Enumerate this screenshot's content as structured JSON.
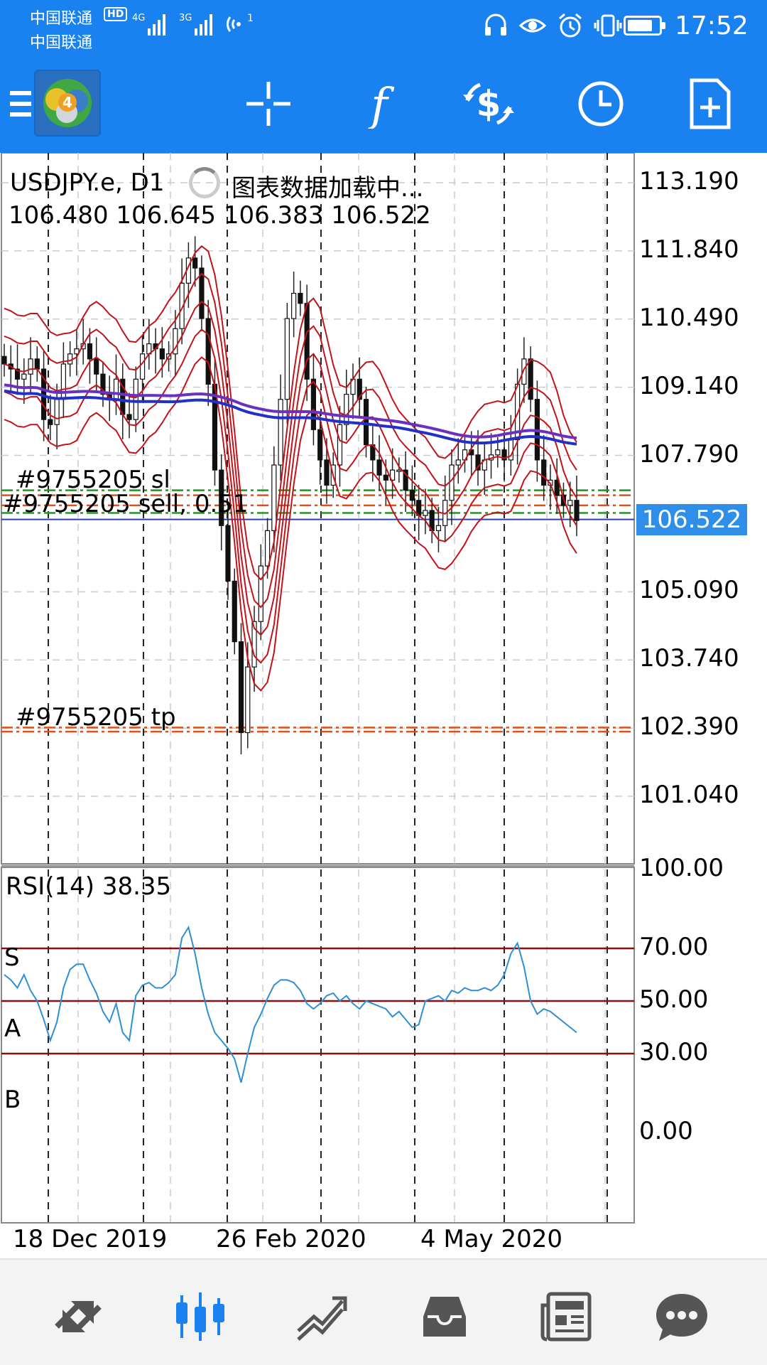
{
  "status_bar": {
    "carrier1": "中国联通",
    "carrier2": "中国联通",
    "hd": "HD",
    "net1": "4G",
    "net2": "3G",
    "time": "17:52"
  },
  "toolbar": {
    "icons": [
      "menu-icon",
      "metatrader-logo",
      "crosshair-icon",
      "indicators-icon",
      "currency-cycle-icon",
      "timeframe-icon",
      "new-order-icon"
    ],
    "accent_color": "#1a82f0"
  },
  "chart": {
    "symbol_line": "USDJPY.e, D1",
    "loading_text": "图表数据加载中...",
    "ohlc": "106.480 106.645 106.383 106.522",
    "sl_label": "#9755205 sl",
    "sell_label": "#9755205 sell, 0.51",
    "tp_label": "#9755205 tp",
    "bid_price": "106.522",
    "price_ticks": [
      "113.190",
      "111.840",
      "110.490",
      "109.140",
      "107.790",
      "105.090",
      "103.740",
      "102.390",
      "101.040"
    ],
    "rsi_label": "RSI(14) 38.35",
    "rsi_ticks": [
      "100.00",
      "70.00",
      "50.00",
      "30.00",
      "0.00"
    ],
    "rsi_level_labels": [
      "S",
      "A",
      "B"
    ],
    "date_ticks": [
      "18 Dec 2019",
      "26 Feb 2020",
      "4 May 2020"
    ],
    "colors": {
      "bands": "#c0141a",
      "ma": "#4030b8",
      "rsi_line": "#2f8fd4",
      "rsi_levels": "#8a1010",
      "order_lines": "#e0501a",
      "bid_badge": "#2e8ee8"
    }
  },
  "chart_data": {
    "type": "candlestick",
    "title": "USDJPY.e, D1",
    "ylim": [
      100.0,
      113.6
    ],
    "y_ticks": [
      113.19,
      111.84,
      110.49,
      109.14,
      107.79,
      105.09,
      103.74,
      102.39,
      101.04
    ],
    "last_close": 106.522,
    "order_levels": {
      "sl": 107.0,
      "sell": 106.8,
      "tp": 102.4
    },
    "closes": [
      109.6,
      109.5,
      109.3,
      109.4,
      109.7,
      109.5,
      108.5,
      108.4,
      108.9,
      109.6,
      109.8,
      109.9,
      110.0,
      109.7,
      109.4,
      109.0,
      108.9,
      109.3,
      108.6,
      108.5,
      109.3,
      109.8,
      110.0,
      109.9,
      109.7,
      109.8,
      110.3,
      111.2,
      111.7,
      111.5,
      110.5,
      109.2,
      107.5,
      106.4,
      105.3,
      104.1,
      102.3,
      103.6,
      104.5,
      105.6,
      106.3,
      107.6,
      108.9,
      110.5,
      111.0,
      110.8,
      109.3,
      108.3,
      107.7,
      107.2,
      107.6,
      108.4,
      109.0,
      109.3,
      108.9,
      108.0,
      107.7,
      107.4,
      107.3,
      107.5,
      107.5,
      107.1,
      106.9,
      106.6,
      106.7,
      106.3,
      106.4,
      106.9,
      107.6,
      107.7,
      107.9,
      107.8,
      107.5,
      107.7,
      107.8,
      107.9,
      107.7,
      108.1,
      109.2,
      109.7,
      108.9,
      107.7,
      107.2,
      107.3,
      107.0,
      106.8,
      106.9,
      106.5
    ],
    "ma_series": {
      "name": "",
      "start": 109.05,
      "end": 108.3
    },
    "rsi": {
      "label": "RSI(14)",
      "last": 38.35,
      "ylim": [
        0,
        100
      ],
      "levels": [
        70,
        50,
        30
      ],
      "values": [
        60,
        58,
        55,
        60,
        54,
        50,
        43,
        35,
        42,
        55,
        62,
        64,
        64,
        58,
        53,
        46,
        42,
        49,
        38,
        35,
        52,
        56,
        57,
        55,
        55,
        57,
        60,
        74,
        78,
        68,
        55,
        45,
        38,
        35,
        32,
        28,
        19,
        30,
        40,
        45,
        51,
        56,
        58,
        58,
        57,
        54,
        49,
        47,
        49,
        52,
        53,
        50,
        52,
        49,
        47,
        50,
        49,
        48,
        47,
        44,
        46,
        43,
        40,
        41,
        50,
        51,
        52,
        50,
        54,
        53,
        55,
        54,
        54,
        55,
        54,
        56,
        60,
        68,
        72,
        63,
        50,
        45,
        47,
        46,
        44,
        42,
        40,
        38
      ]
    },
    "x_ticks": [
      "18 Dec 2019",
      "26 Feb 2020",
      "4 May 2020"
    ]
  },
  "bottom_nav": {
    "items": [
      "quotes-icon",
      "chart-icon",
      "trade-icon",
      "history-icon",
      "news-icon",
      "chat-icon"
    ],
    "active_color": "#1a82f0",
    "inactive_color": "#555555"
  }
}
